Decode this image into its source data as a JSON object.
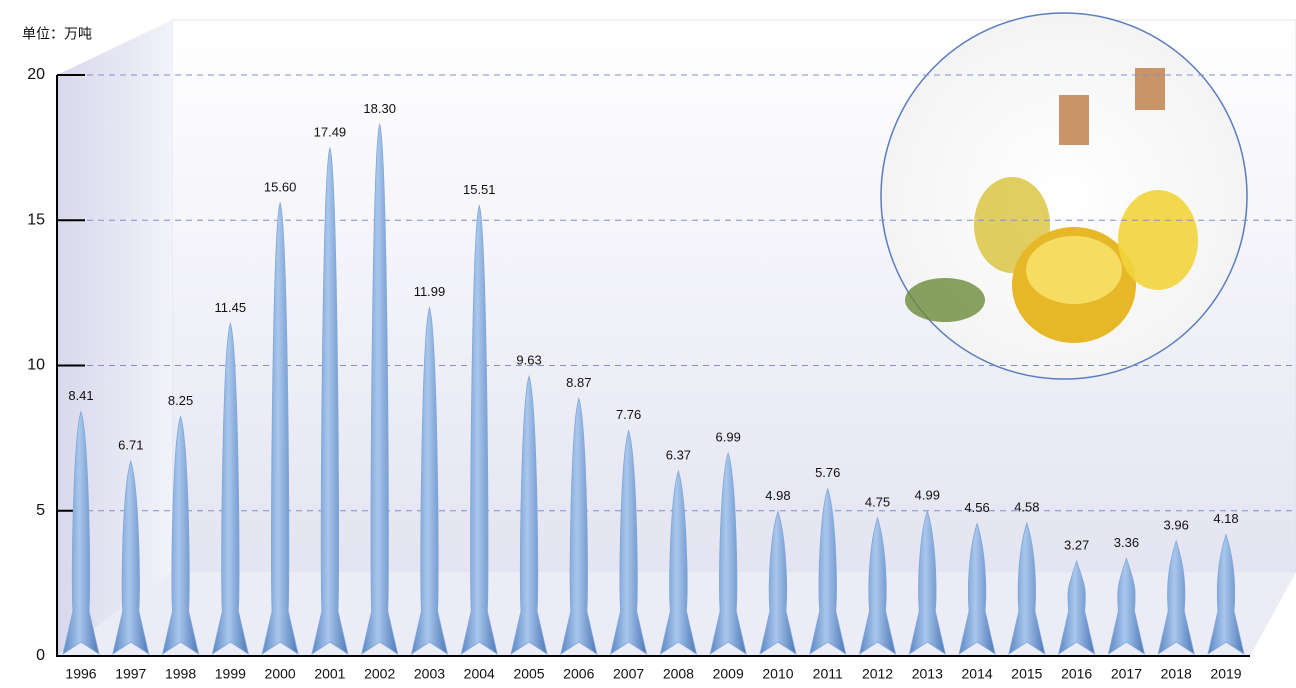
{
  "chart_data": {
    "type": "bar",
    "unit_label": "单位：万吨",
    "categories": [
      "1996",
      "1997",
      "1998",
      "1999",
      "2000",
      "2001",
      "2002",
      "2003",
      "2004",
      "2005",
      "2006",
      "2007",
      "2008",
      "2009",
      "2010",
      "2011",
      "2012",
      "2013",
      "2014",
      "2015",
      "2016",
      "2017",
      "2018",
      "2019"
    ],
    "values": [
      8.41,
      6.71,
      8.25,
      11.45,
      15.6,
      17.49,
      18.3,
      11.99,
      15.51,
      9.63,
      8.87,
      7.76,
      6.37,
      6.99,
      4.98,
      5.76,
      4.75,
      4.99,
      4.56,
      4.58,
      3.27,
      3.36,
      3.96,
      4.18
    ],
    "value_labels": [
      "8.41",
      "6.71",
      "8.25",
      "11.45",
      "15.60",
      "17.49",
      "18.30",
      "11.99",
      "15.51",
      "9.63",
      "8.87",
      "7.76",
      "6.37",
      "6.99",
      "4.98",
      "5.76",
      "4.75",
      "4.99",
      "4.56",
      "4.58",
      "3.27",
      "3.36",
      "3.96",
      "4.18"
    ],
    "color": "#7fa8d8",
    "ylim": [
      0,
      20
    ],
    "yticks": [
      0,
      5,
      10,
      15,
      20
    ],
    "grid": true
  }
}
